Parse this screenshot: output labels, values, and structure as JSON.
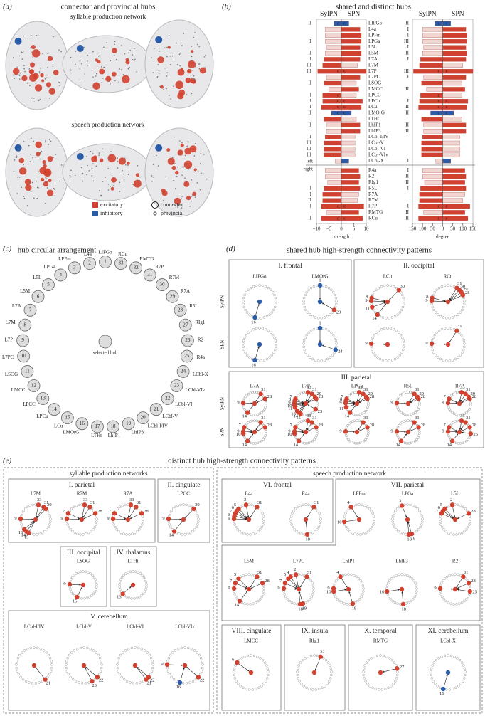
{
  "hubs": [
    {
      "number": 1,
      "name": "LIFGo",
      "color": "#2b5ca8"
    },
    {
      "number": 2,
      "name": "L4a",
      "color": "#d0412f"
    },
    {
      "number": 3,
      "name": "LPFm",
      "color": "#d0412f"
    },
    {
      "number": 4,
      "name": "LPGa",
      "color": "#d0412f"
    },
    {
      "number": 5,
      "name": "L5L",
      "color": "#d0412f"
    },
    {
      "number": 6,
      "name": "L5M",
      "color": "#d0412f"
    },
    {
      "number": 7,
      "name": "L7A",
      "color": "#d0412f"
    },
    {
      "number": 8,
      "name": "L7M",
      "color": "#d0412f"
    },
    {
      "number": 9,
      "name": "L7P",
      "color": "#d0412f"
    },
    {
      "number": 10,
      "name": "L7PC",
      "color": "#d0412f"
    },
    {
      "number": 11,
      "name": "LSOG",
      "color": "#d0412f"
    },
    {
      "number": 12,
      "name": "LMCC",
      "color": "#d0412f"
    },
    {
      "number": 13,
      "name": "LPCC",
      "color": "#d0412f"
    },
    {
      "number": 14,
      "name": "LPCu",
      "color": "#d0412f"
    },
    {
      "number": 15,
      "name": "LCu",
      "color": "#d0412f"
    },
    {
      "number": 16,
      "name": "LMOrG",
      "color": "#2b5ca8"
    },
    {
      "number": 17,
      "name": "LTHt",
      "color": "#d0412f"
    },
    {
      "number": 18,
      "name": "LhIP1",
      "color": "#d0412f"
    },
    {
      "number": 19,
      "name": "LhIP3",
      "color": "#d0412f"
    },
    {
      "number": 20,
      "name": "LCbl-I/IV",
      "color": "#d0412f"
    },
    {
      "number": 21,
      "name": "LCbl-V",
      "color": "#d0412f"
    },
    {
      "number": 22,
      "name": "LCbl-VI",
      "color": "#d0412f"
    },
    {
      "number": 23,
      "name": "LCbl-VIv",
      "color": "#d0412f"
    },
    {
      "number": 24,
      "name": "LCbl-X",
      "color": "#2b5ca8"
    },
    {
      "number": 25,
      "name": "R4a",
      "color": "#d0412f"
    },
    {
      "number": 26,
      "name": "R2",
      "color": "#d0412f"
    },
    {
      "number": 27,
      "name": "RIg1",
      "color": "#d0412f"
    },
    {
      "number": 28,
      "name": "R5L",
      "color": "#d0412f"
    },
    {
      "number": 29,
      "name": "R7A",
      "color": "#d0412f"
    },
    {
      "number": 30,
      "name": "R7M",
      "color": "#d0412f"
    },
    {
      "number": 31,
      "name": "R7P",
      "color": "#d0412f"
    },
    {
      "number": 32,
      "name": "RMTG",
      "color": "#d0412f"
    },
    {
      "number": 33,
      "name": "RCu",
      "color": "#d0412f"
    }
  ],
  "panel_a": {
    "label": "(a)",
    "title": "connector and provincial hubs",
    "subtitles": [
      "syllable production network",
      "speech production network"
    ],
    "colors": [
      {
        "label": "excitatory",
        "color": "#d0412f"
      },
      {
        "label": "inhibitory",
        "color": "#2b5ca8"
      }
    ],
    "sizes": [
      {
        "label": "connector"
      },
      {
        "label": "provincial"
      }
    ]
  },
  "panel_b": {
    "label": "(b)",
    "title": "shared and distinct hubs",
    "left_label": "left",
    "right_label": "right",
    "sylpn_colors": [
      "#2b5ca8",
      "#f1d5d1",
      "#f1d5d1",
      "#f1d5d1",
      "#f1d5d1",
      "#f1d5d1",
      "#d0412f",
      "#d0412f",
      "#d0412f",
      "#f1d5d1",
      "#d0412f",
      "#f1d5d1",
      "#d0412f",
      "#d0412f",
      "#d0412f",
      "#2b5ca8",
      "#d0412f",
      "#f1d5d1",
      "#f1d5d1",
      "#d0412f",
      "#d0412f",
      "#d0412f",
      "#d0412f",
      "#f1d5d1",
      "#f1d5d1",
      "#f1d5d1",
      "#f1d5d1",
      "#d0412f",
      "#d0412f",
      "#d0412f",
      "#d0412f",
      "#f1d5d1",
      "#d0412f"
    ],
    "spn_colors": [
      "#2b5ca8",
      "#d0412f",
      "#d0412f",
      "#d0412f",
      "#d0412f",
      "#d0412f",
      "#d0412f",
      "#f1d5d1",
      "#d0412f",
      "#d0412f",
      "#f1d5d1",
      "#d0412f",
      "#f1d5d1",
      "#d0412f",
      "#d0412f",
      "#2b5ca8",
      "#f1d5d1",
      "#d0412f",
      "#d0412f",
      "#f1d5d1",
      "#f1d5d1",
      "#f1d5d1",
      "#f1d5d1",
      "#2b5ca8",
      "#d0412f",
      "#d0412f",
      "#d0412f",
      "#d0412f",
      "#f1d5d1",
      "#f1d5d1",
      "#d0412f",
      "#d0412f",
      "#d0412f"
    ],
    "sylpn_connector": [
      "c",
      null,
      null,
      null,
      null,
      null,
      null,
      null,
      "c",
      null,
      null,
      null,
      "c",
      "c",
      "c",
      "c",
      null,
      null,
      null,
      null,
      null,
      null,
      null,
      null,
      null,
      null,
      null,
      null,
      null,
      null,
      "c",
      null,
      "c"
    ],
    "spn_connector": [
      "c",
      null,
      null,
      null,
      null,
      null,
      null,
      null,
      "c",
      null,
      null,
      null,
      null,
      "c",
      "c",
      "c",
      null,
      null,
      null,
      null,
      null,
      null,
      null,
      null,
      null,
      null,
      null,
      null,
      null,
      null,
      "c",
      null,
      "c"
    ],
    "sylpn_modules": [
      "II",
      null,
      null,
      "II",
      null,
      "II",
      "I",
      "III",
      "III",
      null,
      "II",
      null,
      "I",
      "I",
      "I",
      "II",
      null,
      "II",
      null,
      "I",
      "III",
      "III",
      "III",
      null,
      null,
      null,
      null,
      "I",
      "I",
      "II",
      "I",
      null,
      "II"
    ],
    "spn_modules": [
      "II",
      "I",
      "I",
      "III",
      "I",
      "II",
      "I",
      null,
      "III",
      "I",
      null,
      "II",
      null,
      "I",
      "II",
      "II",
      null,
      "II",
      "II",
      null,
      null,
      null,
      null,
      "I",
      "I",
      "II",
      "II",
      "I",
      null,
      null,
      "I",
      "II",
      "II"
    ],
    "strength": {
      "xlabel": "strength",
      "xlim": [
        -10,
        10
      ],
      "xticks": [
        {
          "value": -10,
          "label": "−10"
        },
        {
          "value": -5,
          "label": "−5"
        },
        0,
        5,
        10
      ],
      "series": [
        {
          "name": "SylPN",
          "values": [
            -3,
            -6.5,
            -6.5,
            -6.5,
            -6,
            -6.5,
            -7,
            -7.5,
            -9.5,
            -6,
            -7,
            -5,
            -7.5,
            -7.5,
            -8,
            -4,
            -7,
            -6,
            -6,
            -6.5,
            -7,
            -7,
            -7,
            -2.5,
            -6.5,
            -6.5,
            -5.5,
            -7,
            -7.5,
            -7.5,
            -8,
            -6,
            -8
          ]
        },
        {
          "name": "SPN",
          "values": [
            3,
            7.5,
            8,
            8,
            7.5,
            8,
            7.5,
            6.5,
            10,
            7.5,
            6,
            7,
            6,
            8.5,
            8,
            4,
            6,
            7.5,
            7.5,
            5.5,
            5.5,
            5.5,
            5.5,
            3,
            7,
            7.5,
            7,
            7.5,
            7,
            6.5,
            9,
            7,
            8.5
          ]
        }
      ]
    },
    "degree": {
      "xlabel": "degree",
      "xlim": [
        -150,
        150
      ],
      "xticks": [
        {
          "value": -150,
          "label": "150"
        },
        {
          "value": -100,
          "label": "100"
        },
        {
          "value": -50,
          "label": "50"
        },
        0,
        50,
        100,
        150
      ],
      "series": [
        {
          "name": "SylPN",
          "values": [
            -40,
            -100,
            -100,
            -100,
            -95,
            -100,
            -110,
            -115,
            -145,
            -95,
            -105,
            -80,
            -110,
            -115,
            -120,
            -60,
            -105,
            -95,
            -95,
            -100,
            -105,
            -105,
            -105,
            -35,
            -100,
            -100,
            -90,
            -110,
            -115,
            -115,
            -120,
            -95,
            -120
          ]
        },
        {
          "name": "SPN",
          "values": [
            40,
            115,
            120,
            120,
            115,
            120,
            115,
            100,
            150,
            115,
            95,
            110,
            95,
            125,
            120,
            55,
            95,
            115,
            115,
            85,
            85,
            85,
            85,
            40,
            110,
            115,
            110,
            115,
            110,
            100,
            135,
            110,
            125
          ]
        }
      ]
    }
  },
  "panel_c": {
    "label": "(c)",
    "title": "hub circular arrangement",
    "center_label": "selected hub"
  },
  "panel_d": {
    "label": "(d)",
    "title": "shared hub high-strength connectivity patterns",
    "row_labels": [
      "SylPN",
      "SPN"
    ],
    "groups": [
      {
        "name": "I. frontal",
        "hubs": [
          {
            "name": "LIFGo",
            "sylpn": [
              16
            ],
            "spn": [
              16
            ]
          },
          {
            "name": "LMOrG",
            "sylpn": [
              1,
              23
            ],
            "spn": [
              1,
              24
            ]
          }
        ]
      },
      {
        "name": "II. occipital",
        "hubs": [
          {
            "name": "LCu",
            "sylpn": [
              8,
              9,
              11,
              14,
              30
            ],
            "spn": [
              9
            ]
          },
          {
            "name": "RCu",
            "sylpn": [
              8,
              9,
              28,
              29,
              30,
              31
            ],
            "spn": [
              9,
              31
            ]
          }
        ]
      },
      {
        "name": "III. parietal",
        "hubs": [
          {
            "name": "L7A",
            "sylpn": [
              9,
              14,
              28,
              31
            ],
            "spn": [
              7,
              9,
              10,
              14,
              28,
              31
            ]
          },
          {
            "name": "L7P",
            "sylpn": [
              7,
              8,
              9,
              10,
              11,
              13,
              14,
              15,
              23,
              28,
              29,
              31,
              33
            ],
            "spn": [
              7,
              9,
              10,
              14,
              28,
              31,
              33
            ]
          },
          {
            "name": "LPCu",
            "sylpn": [
              7,
              8,
              9,
              11,
              14,
              28,
              29,
              31,
              33
            ],
            "spn": [
              9,
              28,
              31
            ]
          },
          {
            "name": "R5L",
            "sylpn": [
              9,
              28,
              29,
              31
            ],
            "spn": [
              9,
              14,
              28,
              31
            ]
          },
          {
            "name": "R7P",
            "sylpn": [
              7,
              9,
              28,
              29,
              31,
              33
            ],
            "spn": [
              7,
              9,
              14,
              25,
              28,
              31,
              33
            ]
          }
        ]
      }
    ]
  },
  "panel_e": {
    "label": "(e)",
    "title": "distinct hub high-strength connectivity patterns",
    "networks": [
      {
        "name": "syllable production networks",
        "groups": [
          {
            "name": "I. parietal",
            "hubs": [
              {
                "name": "L7M",
                "targets": [
                  9,
                  13,
                  14,
                  15,
                  30,
                  31,
                  33
                ]
              },
              {
                "name": "R7M",
                "targets": [
                  7,
                  9,
                  28,
                  31,
                  33
                ]
              },
              {
                "name": "R7A",
                "targets": [
                  7,
                  9,
                  28,
                  31,
                  33
                ]
              }
            ]
          },
          {
            "name": "II. cingulate",
            "hubs": [
              {
                "name": "LPCC",
                "targets": [
                  9,
                  14,
                  30
                ]
              }
            ]
          },
          {
            "name": "III. occipital",
            "hubs": [
              {
                "name": "LSOG",
                "targets": [
                  9,
                  15
                ]
              }
            ]
          },
          {
            "name": "IV. thalamus",
            "hubs": [
              {
                "name": "LTHt",
                "targets": [
                  13
                ]
              }
            ]
          },
          {
            "name": "V. cerebellum",
            "hubs": [
              {
                "name": "LCbl-I/IV",
                "targets": [
                  21
                ]
              },
              {
                "name": "LCbl-V",
                "targets": [
                  20,
                  22
                ]
              },
              {
                "name": "LCbl-VI",
                "targets": [
                  21,
                  22
                ]
              },
              {
                "name": "LCbl-VIv",
                "targets": [
                  9,
                  16,
                  22
                ]
              }
            ]
          }
        ]
      },
      {
        "name": "speech production network",
        "groups": [
          {
            "name": "VI. frontal",
            "hubs": [
              {
                "name": "L4a",
                "targets": [
                  2,
                  5,
                  6,
                  7,
                  8,
                  9,
                  31
                ]
              },
              {
                "name": "R4a",
                "targets": [
                  18,
                  31
                ]
              }
            ]
          },
          {
            "name": "VII. parietal",
            "hubs": [
              {
                "name": "LPFm",
                "targets": [
                  4,
                  10
                ]
              },
              {
                "name": "LPGa",
                "targets": [
                  3,
                  18,
                  19
                ]
              },
              {
                "name": "L5L",
                "targets": [
                  2,
                  5,
                  6,
                  7,
                  28
                ]
              },
              {
                "name": "L5M",
                "targets": [
                  5,
                  7,
                  9,
                  14,
                  28,
                  31
                ]
              },
              {
                "name": "L7PC",
                "targets": [
                  2,
                  4,
                  5,
                  7,
                  9,
                  18,
                  19,
                  31
                ]
              },
              {
                "name": "LhIP1",
                "targets": [
                  4,
                  9,
                  10,
                  19
                ]
              },
              {
                "name": "LhIP3",
                "targets": [
                  10,
                  18
                ]
              },
              {
                "name": "R2",
                "targets": [
                  9,
                  25,
                  28,
                  31
                ]
              }
            ]
          },
          {
            "name": "VIII. cingulate",
            "hubs": [
              {
                "name": "LMCC",
                "targets": [
                  6
                ]
              }
            ]
          },
          {
            "name": "IX. insula",
            "hubs": [
              {
                "name": "RIg1",
                "targets": [
                  32
                ]
              }
            ]
          },
          {
            "name": "X. temporal",
            "hubs": [
              {
                "name": "RMTG",
                "targets": [
                  27
                ]
              }
            ]
          },
          {
            "name": "XI. cerebellum",
            "hubs": [
              {
                "name": "LCbl-X",
                "targets": [
                  16
                ]
              }
            ]
          }
        ]
      }
    ]
  }
}
